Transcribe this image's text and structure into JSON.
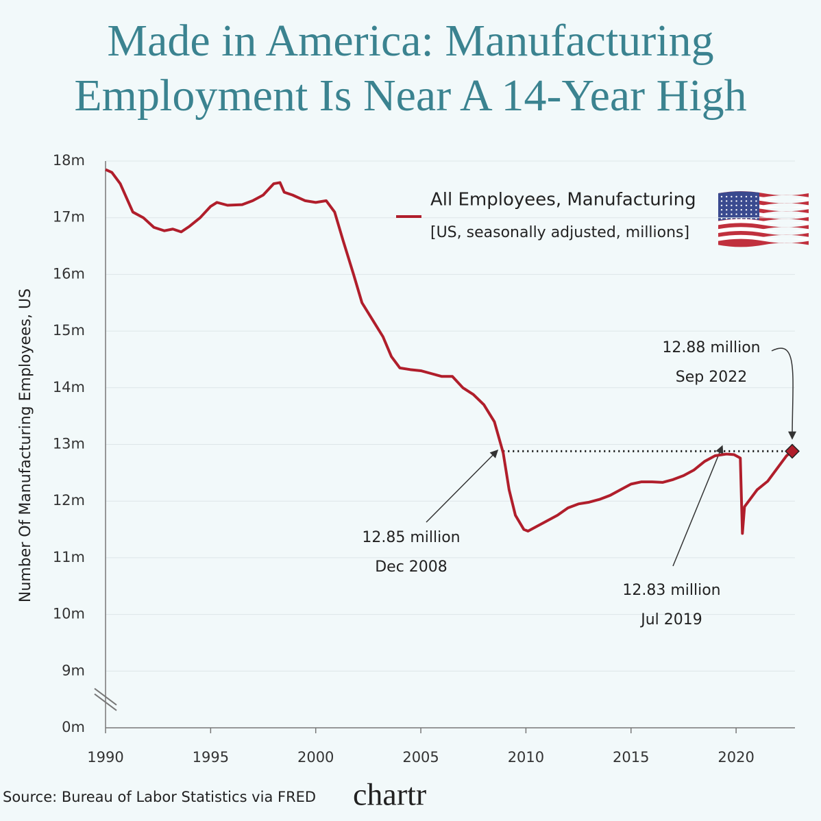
{
  "chart_data": {
    "type": "line",
    "title": [
      "Made in America: Manufacturing",
      "Employment Is Near A 14-Year High"
    ],
    "y_label": "Number Of Manufacturing Employees, US",
    "legend_note": "[US, seasonally adjusted, millions]",
    "source": "Source: Bureau of Labor Statistics via FRED",
    "brand": "chartr",
    "xlim": [
      1990,
      2022.8
    ],
    "xticks": [
      1990,
      1995,
      2000,
      2005,
      2010,
      2015,
      2020
    ],
    "ylim": [
      0,
      18
    ],
    "y_break": [
      0,
      8
    ],
    "yticks": [
      {
        "value": 0,
        "label": "0m"
      },
      {
        "value": 9,
        "label": "9m"
      },
      {
        "value": 10,
        "label": "10m"
      },
      {
        "value": 11,
        "label": "11m"
      },
      {
        "value": 12,
        "label": "12m"
      },
      {
        "value": 13,
        "label": "13m"
      },
      {
        "value": 14,
        "label": "14m"
      },
      {
        "value": 15,
        "label": "15m"
      },
      {
        "value": 16,
        "label": "16m"
      },
      {
        "value": 17,
        "label": "17m"
      },
      {
        "value": 18,
        "label": "18m"
      }
    ],
    "grid": true,
    "series": [
      {
        "name": "All Employees, Manufacturing",
        "color": "#b01e2b",
        "x": [
          1990.0,
          1990.3,
          1990.7,
          1991.0,
          1991.3,
          1991.8,
          1992.3,
          1992.8,
          1993.2,
          1993.6,
          1994.0,
          1994.5,
          1995.0,
          1995.3,
          1995.8,
          1996.5,
          1997.0,
          1997.5,
          1998.0,
          1998.3,
          1998.5,
          1998.9,
          1999.5,
          2000.0,
          2000.5,
          2000.9,
          2001.3,
          2001.8,
          2002.2,
          2002.7,
          2003.2,
          2003.6,
          2004.0,
          2004.5,
          2005.0,
          2005.5,
          2006.0,
          2006.5,
          2007.0,
          2007.5,
          2008.0,
          2008.5,
          2008.92,
          2009.2,
          2009.5,
          2009.9,
          2010.1,
          2010.5,
          2011.0,
          2011.5,
          2012.0,
          2012.5,
          2013.0,
          2013.5,
          2014.0,
          2014.5,
          2015.0,
          2015.5,
          2016.0,
          2016.5,
          2017.0,
          2017.5,
          2018.0,
          2018.5,
          2019.0,
          2019.54,
          2019.9,
          2020.2,
          2020.3,
          2020.4,
          2020.7,
          2021.0,
          2021.5,
          2022.0,
          2022.4,
          2022.67
        ],
        "values": [
          17.85,
          17.8,
          17.6,
          17.35,
          17.1,
          17.0,
          16.83,
          16.77,
          16.8,
          16.75,
          16.85,
          17.0,
          17.2,
          17.27,
          17.22,
          17.23,
          17.3,
          17.4,
          17.6,
          17.62,
          17.45,
          17.4,
          17.3,
          17.27,
          17.3,
          17.1,
          16.6,
          16.0,
          15.5,
          15.2,
          14.9,
          14.55,
          14.35,
          14.32,
          14.3,
          14.25,
          14.2,
          14.2,
          14.0,
          13.88,
          13.7,
          13.4,
          12.85,
          12.2,
          11.75,
          11.5,
          11.47,
          11.55,
          11.65,
          11.75,
          11.88,
          11.95,
          11.98,
          12.03,
          12.1,
          12.2,
          12.3,
          12.34,
          12.34,
          12.33,
          12.38,
          12.45,
          12.55,
          12.7,
          12.8,
          12.83,
          12.82,
          12.76,
          11.43,
          11.9,
          12.05,
          12.2,
          12.35,
          12.6,
          12.8,
          12.88
        ]
      }
    ],
    "annotations": [
      {
        "text": "12.85 million",
        "date": "Dec 2008",
        "x": 2008.92,
        "y": 12.85
      },
      {
        "text": "12.83 million",
        "date": "Jul 2019",
        "x": 2019.54,
        "y": 12.83
      },
      {
        "text": "12.88 million",
        "date": "Sep 2022",
        "x": 2022.67,
        "y": 12.88
      }
    ]
  }
}
